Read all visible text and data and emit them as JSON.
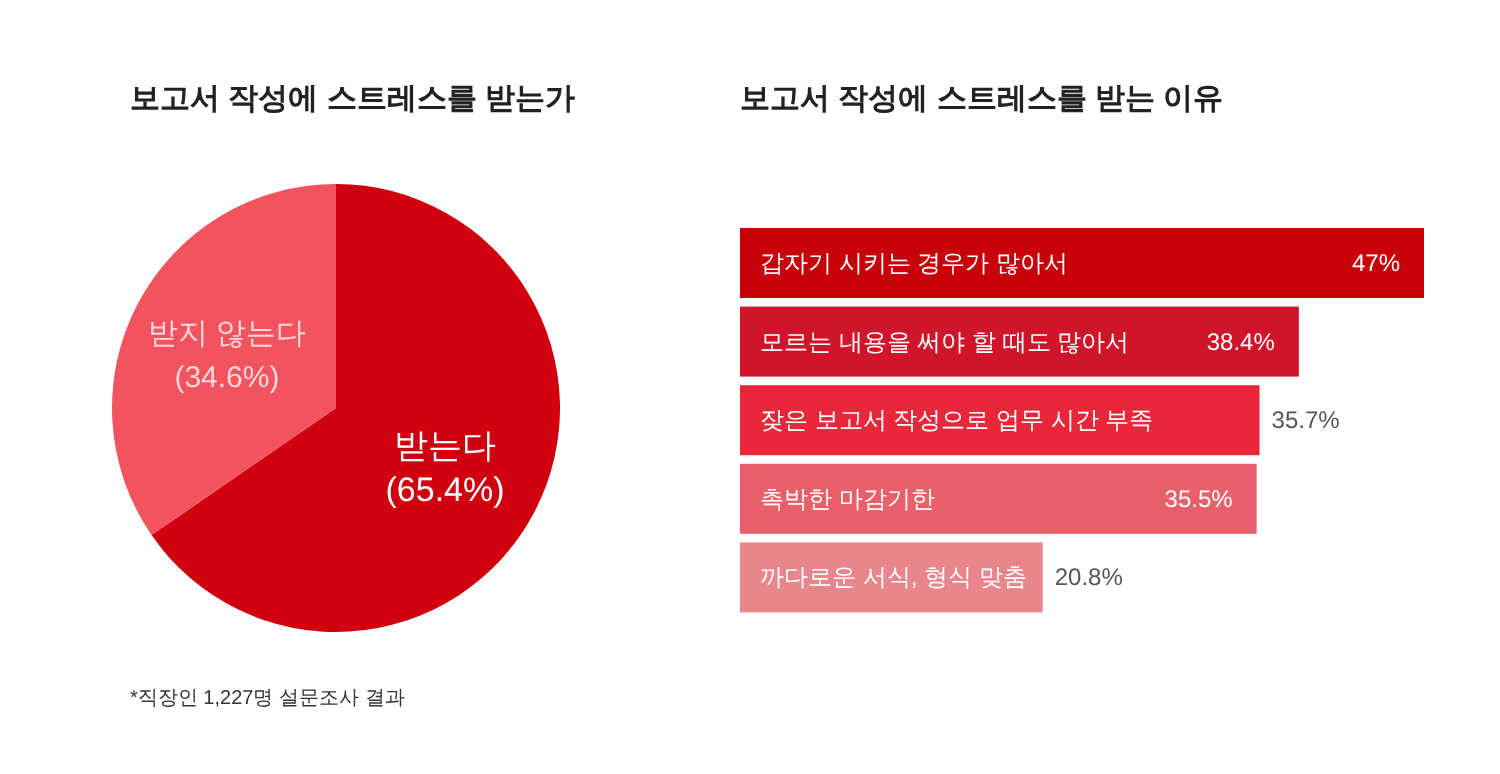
{
  "chart_data": [
    {
      "type": "pie",
      "title": "보고서 작성에 스트레스를 받는가",
      "categories": [
        "받는다",
        "받지 않는다"
      ],
      "values": [
        65.4,
        34.6
      ],
      "colors": [
        "#d0000f",
        "#f2545f"
      ],
      "value_labels": [
        "(65.4%)",
        "(34.6%)"
      ],
      "annotations": [
        "*직장인 1,227명 설문조사 결과"
      ]
    },
    {
      "type": "bar",
      "orientation": "horizontal",
      "title": "보고서 작성에 스트레스를 받는 이유",
      "categories": [
        "갑자기 시키는 경우가 많아서",
        "모르는 내용을 써야 할 때도 많아서",
        "잦은 보고서 작성으로 업무 시간 부족",
        "촉박한 마감기한",
        "까다로운 서식, 형식 맞춤"
      ],
      "values": [
        47,
        38.4,
        35.7,
        35.5,
        20.8
      ],
      "colors": [
        "#c8000a",
        "#d0142a",
        "#e8283a",
        "#e9606a",
        "#e8868c"
      ],
      "value_labels": [
        "47%",
        "38.4%",
        "35.7%",
        "35.5%",
        "20.8%"
      ]
    }
  ]
}
